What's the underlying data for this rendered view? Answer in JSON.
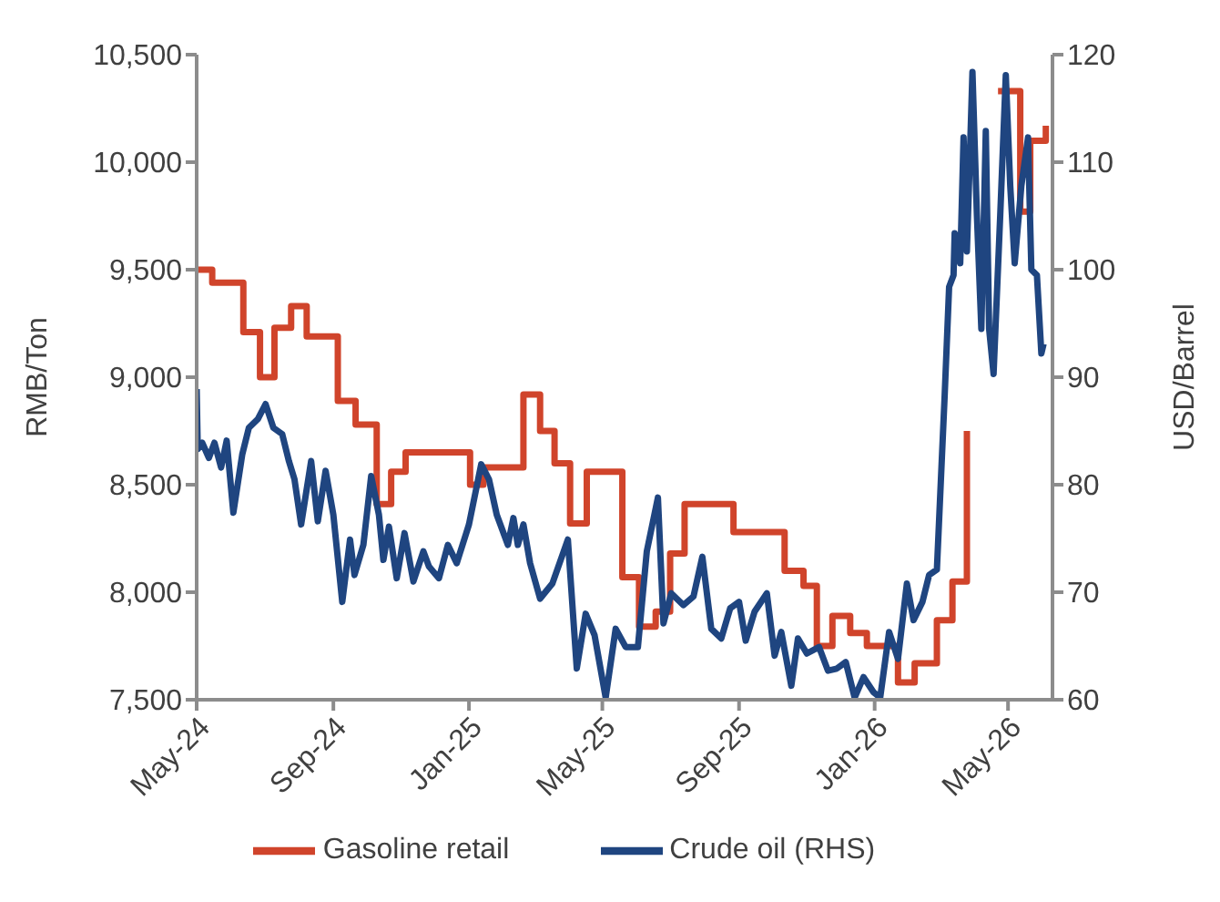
{
  "chart_data": {
    "type": "line",
    "ylabel": "RMB/Ton",
    "y2label": "USD/Barrel",
    "xlim": [
      "2024-05-01",
      "2026-06-10"
    ],
    "xticks": [
      {
        "value": "2024-05-01",
        "label": "May-24"
      },
      {
        "value": "2024-09-01",
        "label": "Sep-24"
      },
      {
        "value": "2025-01-01",
        "label": "Jan-25"
      },
      {
        "value": "2025-05-01",
        "label": "May-25"
      },
      {
        "value": "2025-09-01",
        "label": "Sep-25"
      },
      {
        "value": "2026-01-01",
        "label": "Jan-26"
      },
      {
        "value": "2026-05-01",
        "label": "May-26"
      }
    ],
    "ylim": [
      7500,
      10500
    ],
    "yticks": [
      {
        "value": 7500,
        "label": "7,500"
      },
      {
        "value": 8000,
        "label": "8,000"
      },
      {
        "value": 8500,
        "label": "8,500"
      },
      {
        "value": 9000,
        "label": "9,000"
      },
      {
        "value": 9500,
        "label": "9,500"
      },
      {
        "value": 10000,
        "label": "10,000"
      },
      {
        "value": 10500,
        "label": "10,500"
      }
    ],
    "y2lim": [
      60,
      120
    ],
    "y2ticks": [
      60,
      70,
      80,
      90,
      100,
      110,
      120
    ],
    "legend": "bottom",
    "series": [
      {
        "name": "Gasoline retail",
        "type": "step",
        "color": "#d0442b",
        "x": [
          "2024-05-01",
          "2024-05-15",
          "2024-06-12",
          "2024-06-27",
          "2024-07-10",
          "2024-07-25",
          "2024-08-08",
          "2024-09-05",
          "2024-09-21",
          "2024-10-10",
          "2024-10-23",
          "2024-11-05",
          "2025-01-02",
          "2025-01-14",
          "2025-02-19",
          "2025-03-06",
          "2025-03-19",
          "2025-04-02",
          "2025-04-17",
          "2025-05-19",
          "2025-06-03",
          "2025-06-18",
          "2025-07-01",
          "2025-07-14",
          "2025-08-27",
          "2025-10-12",
          "2025-10-29",
          "2025-11-10",
          "2025-11-24",
          "2025-12-10",
          "2025-12-25",
          "2026-01-22",
          "2026-02-06",
          "2026-02-26",
          "2026-03-12",
          "2026-03-25",
          "2026-04-07",
          "2026-04-22",
          "2026-05-12",
          "2026-05-21",
          "2026-06-04"
        ],
        "values": [
          9500,
          9440,
          9210,
          9000,
          9230,
          9330,
          9190,
          8890,
          8780,
          8410,
          8560,
          8650,
          8500,
          8580,
          8920,
          8750,
          8600,
          8320,
          8560,
          8070,
          7840,
          7910,
          8180,
          8410,
          8280,
          8100,
          8030,
          7750,
          7890,
          7810,
          7750,
          7580,
          7670,
          7870,
          8050,
          8750,
          null,
          10330,
          9770,
          10100,
          10170
        ]
      },
      {
        "name": "Crude oil (RHS)",
        "axis": "y2",
        "color": "#1f4580",
        "x": [
          "2024-05-01",
          "2024-05-02",
          "2024-05-06",
          "2024-05-12",
          "2024-05-17",
          "2024-05-23",
          "2024-05-28",
          "2024-06-03",
          "2024-06-11",
          "2024-06-17",
          "2024-06-25",
          "2024-07-02",
          "2024-07-09",
          "2024-07-17",
          "2024-07-23",
          "2024-07-28",
          "2024-08-03",
          "2024-08-12",
          "2024-08-18",
          "2024-08-25",
          "2024-09-01",
          "2024-09-09",
          "2024-09-16",
          "2024-09-20",
          "2024-09-28",
          "2024-10-05",
          "2024-10-12",
          "2024-10-16",
          "2024-10-21",
          "2024-10-28",
          "2024-11-04",
          "2024-11-12",
          "2024-11-21",
          "2024-11-26",
          "2024-12-05",
          "2024-12-13",
          "2024-12-21",
          "2025-01-01",
          "2025-01-12",
          "2025-01-19",
          "2025-01-26",
          "2025-02-05",
          "2025-02-10",
          "2025-02-14",
          "2025-02-19",
          "2025-02-25",
          "2025-03-06",
          "2025-03-17",
          "2025-03-31",
          "2025-04-08",
          "2025-04-16",
          "2025-04-24",
          "2025-05-04",
          "2025-05-13",
          "2025-05-22",
          "2025-06-02",
          "2025-06-10",
          "2025-06-20",
          "2025-06-25",
          "2025-07-02",
          "2025-07-13",
          "2025-07-22",
          "2025-07-30",
          "2025-08-07",
          "2025-08-16",
          "2025-08-24",
          "2025-09-01",
          "2025-09-07",
          "2025-09-15",
          "2025-09-26",
          "2025-10-03",
          "2025-10-09",
          "2025-10-18",
          "2025-10-24",
          "2025-11-01",
          "2025-11-12",
          "2025-11-20",
          "2025-11-28",
          "2025-12-06",
          "2025-12-14",
          "2025-12-22",
          "2025-12-31",
          "2026-01-06",
          "2026-01-14",
          "2026-01-22",
          "2026-01-30",
          "2026-02-05",
          "2026-02-13",
          "2026-02-19",
          "2026-02-26",
          "2026-03-05",
          "2026-03-09",
          "2026-03-13",
          "2026-03-14",
          "2026-03-19",
          "2026-03-22",
          "2026-03-25",
          "2026-03-30",
          "2026-04-03",
          "2026-04-07",
          "2026-04-11",
          "2026-04-14",
          "2026-04-18",
          "2026-04-24",
          "2026-04-29",
          "2026-05-03",
          "2026-05-07",
          "2026-05-13",
          "2026-05-19",
          "2026-05-22",
          "2026-05-27",
          "2026-05-31",
          "2026-06-02"
        ],
        "values": [
          88.9,
          83.3,
          83.9,
          82.5,
          83.9,
          81.6,
          84.1,
          77.4,
          82.8,
          85.3,
          86.1,
          87.5,
          85.3,
          84.7,
          82.2,
          80.5,
          76.3,
          82.2,
          76.6,
          81.3,
          77.2,
          69.1,
          74.9,
          71.6,
          74.4,
          80.8,
          77.2,
          73.0,
          76.1,
          71.3,
          75.5,
          71.0,
          73.8,
          72.4,
          71.3,
          74.4,
          72.7,
          76.3,
          81.9,
          80.5,
          77.2,
          74.4,
          76.9,
          74.4,
          76.3,
          72.7,
          69.4,
          70.8,
          74.9,
          62.9,
          68.0,
          66.0,
          60.2,
          66.6,
          64.9,
          64.9,
          73.8,
          78.8,
          67.1,
          69.9,
          68.8,
          69.6,
          73.3,
          66.6,
          65.7,
          68.5,
          69.1,
          65.5,
          68.2,
          69.9,
          64.1,
          66.3,
          61.3,
          65.7,
          64.3,
          64.9,
          62.7,
          62.9,
          63.5,
          60.2,
          62.1,
          60.7,
          60.2,
          66.3,
          63.8,
          70.8,
          67.4,
          69.1,
          71.6,
          72.1,
          88.3,
          98.4,
          99.5,
          103.4,
          100.6,
          112.3,
          101.7,
          118.4,
          105.1,
          94.5,
          112.9,
          94.5,
          90.3,
          105.1,
          118.1,
          107.8,
          100.6,
          107.8,
          112.3,
          100.0,
          99.5,
          92.2,
          93.1
        ]
      }
    ]
  }
}
